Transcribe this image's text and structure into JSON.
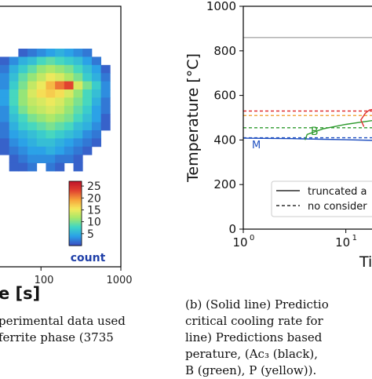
{
  "left_panel": {
    "colorbar_ticks": [
      "25",
      "20",
      "15",
      "10",
      "5"
    ],
    "colorbar_label": "count",
    "colors": [
      "#3b4cc0",
      "#2aa0e8",
      "#3fd6c6",
      "#a5e86b",
      "#f5e95b",
      "#f7a13a",
      "#e04030",
      "#c0142a"
    ],
    "x_tick_labels": [
      "100",
      "1000"
    ],
    "xlabel_fragment": "e [s]",
    "caption_lines": [
      "perimental data used",
      "ferrite phase (3735"
    ]
  },
  "right_panel": {
    "ylabel": "Temperature [°C]",
    "xlabel_fragment": "Ti",
    "y_tick_labels": [
      "1000",
      "800",
      "600",
      "400",
      "200",
      "0"
    ],
    "legend": {
      "solid": "truncated a",
      "dashed": "no consider"
    },
    "curve_labels": {
      "M": "M",
      "B": "B"
    },
    "caption_lines": [
      "(b) (Solid line) Predictio",
      "critical cooling rate for",
      "line) Predictions based",
      "perature, (Ac₃ (black),",
      "B (green), P (yellow))."
    ]
  },
  "chart_data": [
    {
      "type": "heatmap",
      "title": "",
      "xlabel": "e [s]",
      "x_scale": "log",
      "xlim": [
        30,
        1000
      ],
      "x_ticks": [
        100,
        1000
      ],
      "colorbar": {
        "label": "count",
        "range": [
          0,
          27
        ],
        "ticks": [
          5,
          10,
          15,
          20,
          25
        ]
      },
      "rows": [
        [
          0,
          0,
          1,
          2,
          3,
          4,
          5,
          4,
          3,
          2,
          0,
          0,
          0
        ],
        [
          1,
          3,
          5,
          6,
          8,
          9,
          8,
          7,
          6,
          4,
          2,
          0,
          0
        ],
        [
          2,
          5,
          7,
          9,
          11,
          12,
          11,
          10,
          8,
          6,
          4,
          1,
          0
        ],
        [
          3,
          6,
          9,
          11,
          13,
          15,
          14,
          12,
          10,
          7,
          5,
          2,
          0
        ],
        [
          3,
          7,
          10,
          13,
          15,
          18,
          21,
          23,
          14,
          10,
          7,
          3,
          0
        ],
        [
          4,
          8,
          11,
          14,
          16,
          17,
          16,
          14,
          11,
          8,
          6,
          3,
          0
        ],
        [
          4,
          8,
          11,
          13,
          14,
          15,
          14,
          12,
          10,
          8,
          5,
          2,
          0
        ],
        [
          3,
          7,
          10,
          12,
          13,
          14,
          13,
          11,
          9,
          7,
          4,
          2,
          0
        ],
        [
          3,
          6,
          8,
          10,
          11,
          12,
          11,
          10,
          8,
          6,
          4,
          1,
          0
        ],
        [
          2,
          5,
          7,
          8,
          9,
          10,
          9,
          8,
          6,
          5,
          3,
          1,
          0
        ],
        [
          2,
          4,
          5,
          6,
          7,
          8,
          7,
          6,
          5,
          3,
          2,
          0,
          0
        ],
        [
          1,
          3,
          4,
          5,
          6,
          6,
          5,
          4,
          3,
          2,
          1,
          0,
          0
        ],
        [
          1,
          2,
          3,
          4,
          4,
          5,
          4,
          3,
          2,
          1,
          0,
          0,
          0
        ],
        [
          0,
          1,
          2,
          3,
          3,
          3,
          2,
          2,
          1,
          0,
          0,
          0,
          0
        ],
        [
          0,
          1,
          1,
          2,
          0,
          2,
          1,
          0,
          1,
          0,
          0,
          0,
          0
        ]
      ]
    },
    {
      "type": "line",
      "title": "",
      "xlabel": "Ti",
      "ylabel": "Temperature [°C]",
      "x_scale": "log",
      "xlim": [
        1,
        20
      ],
      "x_ticks": [
        1,
        10
      ],
      "ylim": [
        0,
        1000
      ],
      "y_ticks": [
        0,
        200,
        400,
        600,
        800,
        1000
      ],
      "series": [
        {
          "style": "solid",
          "color": "#aaaaaa",
          "x": [
            1,
            20
          ],
          "y": [
            860,
            860
          ]
        },
        {
          "style": "dashed",
          "color": "#e03030",
          "x": [
            1,
            20
          ],
          "y": [
            530,
            530
          ]
        },
        {
          "style": "dashed",
          "color": "#f0a030",
          "x": [
            1,
            20
          ],
          "y": [
            510,
            510
          ]
        },
        {
          "style": "dashed",
          "color": "#2e9a2e",
          "x": [
            1,
            20
          ],
          "y": [
            455,
            455
          ]
        },
        {
          "style": "dashed",
          "color": "#1f4fc0",
          "x": [
            1,
            20
          ],
          "y": [
            410,
            410
          ]
        },
        {
          "name": "M",
          "style": "solid",
          "color": "#1f4fc0",
          "x": [
            1,
            3,
            6,
            10,
            20
          ],
          "y": [
            408,
            406,
            403,
            401,
            398
          ]
        },
        {
          "name": "B",
          "style": "solid",
          "color": "#2e9a2e",
          "x": [
            4,
            4.2,
            6,
            10,
            14,
            20
          ],
          "y": [
            400,
            425,
            450,
            470,
            480,
            490
          ]
        },
        {
          "style": "solid",
          "color": "#e03030",
          "x": [
            15,
            14,
            15.5,
            17,
            20
          ],
          "y": [
            460,
            490,
            520,
            535,
            540
          ]
        }
      ]
    }
  ]
}
